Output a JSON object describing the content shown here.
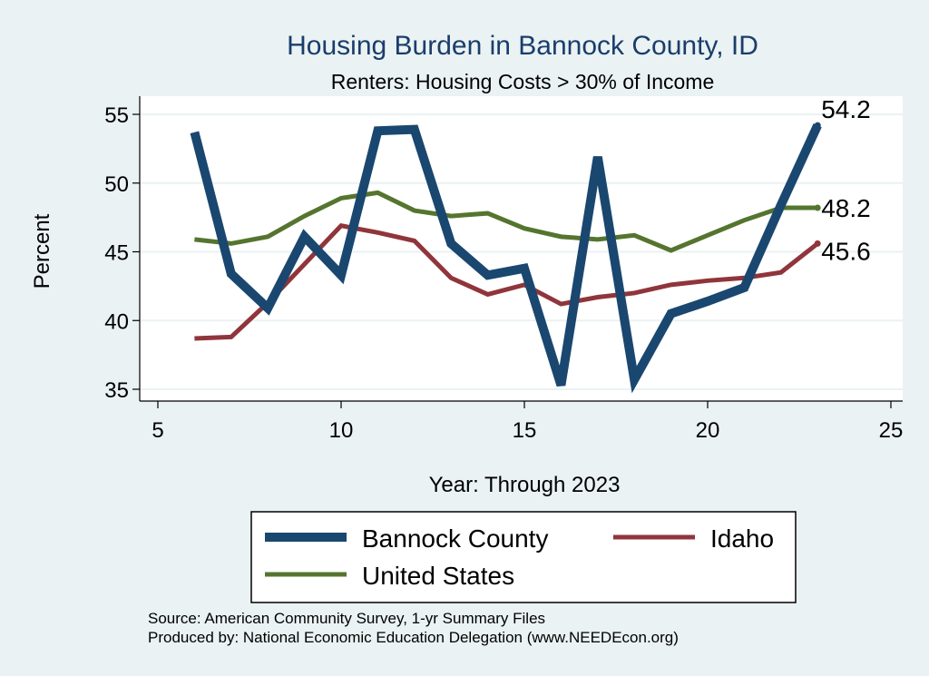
{
  "chart_data": {
    "type": "line",
    "title": "Housing Burden in Bannock County, ID",
    "subtitle": "Renters: Housing Costs > 30% of Income",
    "xlabel": "Year: Through 2023",
    "ylabel": "Percent",
    "xlim": [
      5,
      25
    ],
    "ylim": [
      35,
      55
    ],
    "x_ticks": [
      5,
      10,
      15,
      20,
      25
    ],
    "y_ticks": [
      35,
      40,
      45,
      50,
      55
    ],
    "grid": "horizontal",
    "legend_position": "bottom",
    "series": [
      {
        "name": "Bannock County",
        "color": "#1a476f",
        "x": [
          6,
          7,
          8,
          9,
          10,
          11,
          12,
          13,
          14,
          15,
          16,
          17,
          18,
          19,
          20,
          21,
          22,
          23
        ],
        "values": [
          53.7,
          43.4,
          40.9,
          46.1,
          43.3,
          53.8,
          53.9,
          45.6,
          43.3,
          43.8,
          35.3,
          51.9,
          35.7,
          40.5,
          41.4,
          42.4,
          48.4,
          54.2
        ],
        "end_label": "54.2"
      },
      {
        "name": "Idaho",
        "color": "#90353b",
        "x": [
          6,
          7,
          8,
          9,
          10,
          11,
          12,
          13,
          14,
          15,
          16,
          17,
          18,
          19,
          20,
          21,
          22,
          23
        ],
        "values": [
          38.7,
          38.8,
          41.3,
          44.1,
          46.9,
          46.4,
          45.8,
          43.1,
          41.9,
          42.6,
          41.2,
          41.7,
          42.0,
          42.6,
          42.9,
          43.1,
          43.5,
          45.6
        ],
        "end_label": "45.6"
      },
      {
        "name": "United States",
        "color": "#55752f",
        "x": [
          6,
          7,
          8,
          9,
          10,
          11,
          12,
          13,
          14,
          15,
          16,
          17,
          18,
          19,
          20,
          21,
          22,
          23
        ],
        "values": [
          45.9,
          45.6,
          46.1,
          47.6,
          48.9,
          49.3,
          48.0,
          47.6,
          47.8,
          46.7,
          46.1,
          45.9,
          46.2,
          45.1,
          46.2,
          47.3,
          48.2,
          48.2
        ],
        "end_label": "48.2"
      }
    ]
  },
  "source_note": "Source: American Community Survey, 1-yr Summary Files",
  "produced_note": "Produced by: National Economic Education Delegation (www.NEEDEcon.org)"
}
